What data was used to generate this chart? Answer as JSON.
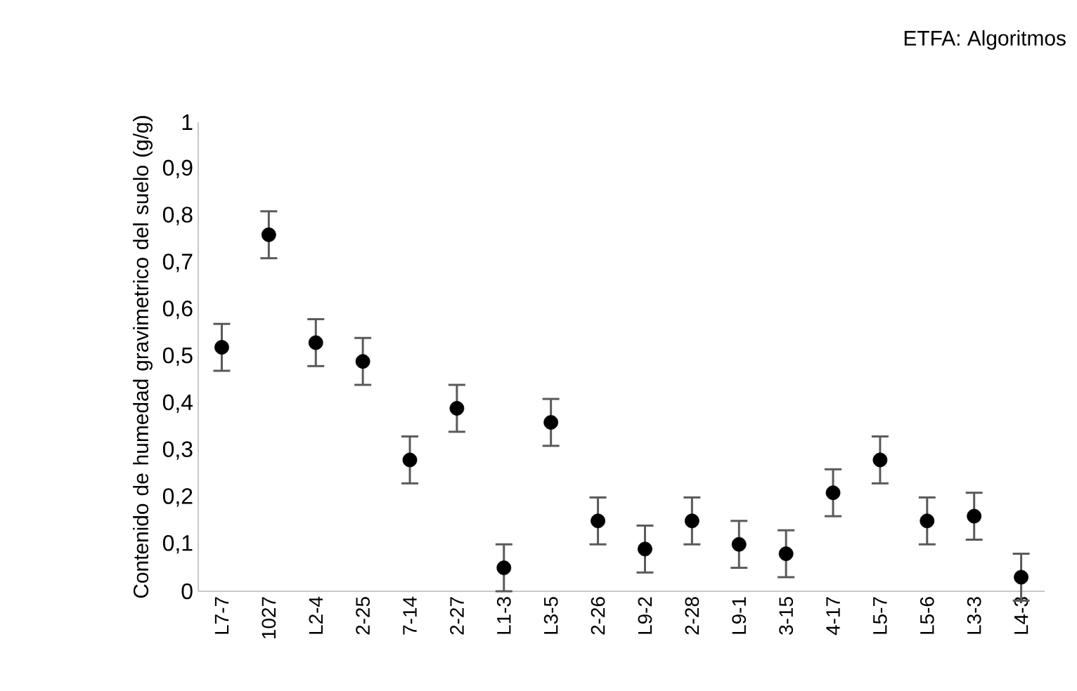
{
  "chart_data": {
    "type": "scatter",
    "title": "ETFA: Algoritmos",
    "ylabel": "Contenido de humedad gravimetrico del suelo (g/g)",
    "categories": [
      "L7-7",
      "1027",
      "L2-4",
      "2-25",
      "7-14",
      "2-27",
      "L1-3",
      "L3-5",
      "2-26",
      "L9-2",
      "2-28",
      "L9-1",
      "3-15",
      "4-17",
      "L5-7",
      "L5-6",
      "L3-3",
      "L4-3"
    ],
    "values": [
      0.52,
      0.76,
      0.53,
      0.49,
      0.28,
      0.39,
      0.05,
      0.36,
      0.15,
      0.09,
      0.15,
      0.1,
      0.08,
      0.21,
      0.28,
      0.15,
      0.16,
      0.03
    ],
    "errors": [
      0.05,
      0.05,
      0.05,
      0.05,
      0.05,
      0.05,
      0.05,
      0.05,
      0.05,
      0.05,
      0.05,
      0.05,
      0.05,
      0.05,
      0.05,
      0.05,
      0.05,
      0.05
    ],
    "color": "#000000",
    "marker": "circle",
    "ylim": [
      0,
      1
    ],
    "yticks": [
      0,
      {
        "value": 0.1,
        "label": "0,1"
      },
      {
        "value": 0.2,
        "label": "0,2"
      },
      {
        "value": 0.3,
        "label": "0,3"
      },
      {
        "value": 0.4,
        "label": "0,4"
      },
      {
        "value": 0.5,
        "label": "0,5"
      },
      {
        "value": 0.6,
        "label": "0,6"
      },
      {
        "value": 0.7,
        "label": "0,7"
      },
      {
        "value": 0.8,
        "label": "0,8"
      },
      {
        "value": 0.9,
        "label": "0,9"
      },
      1
    ]
  }
}
